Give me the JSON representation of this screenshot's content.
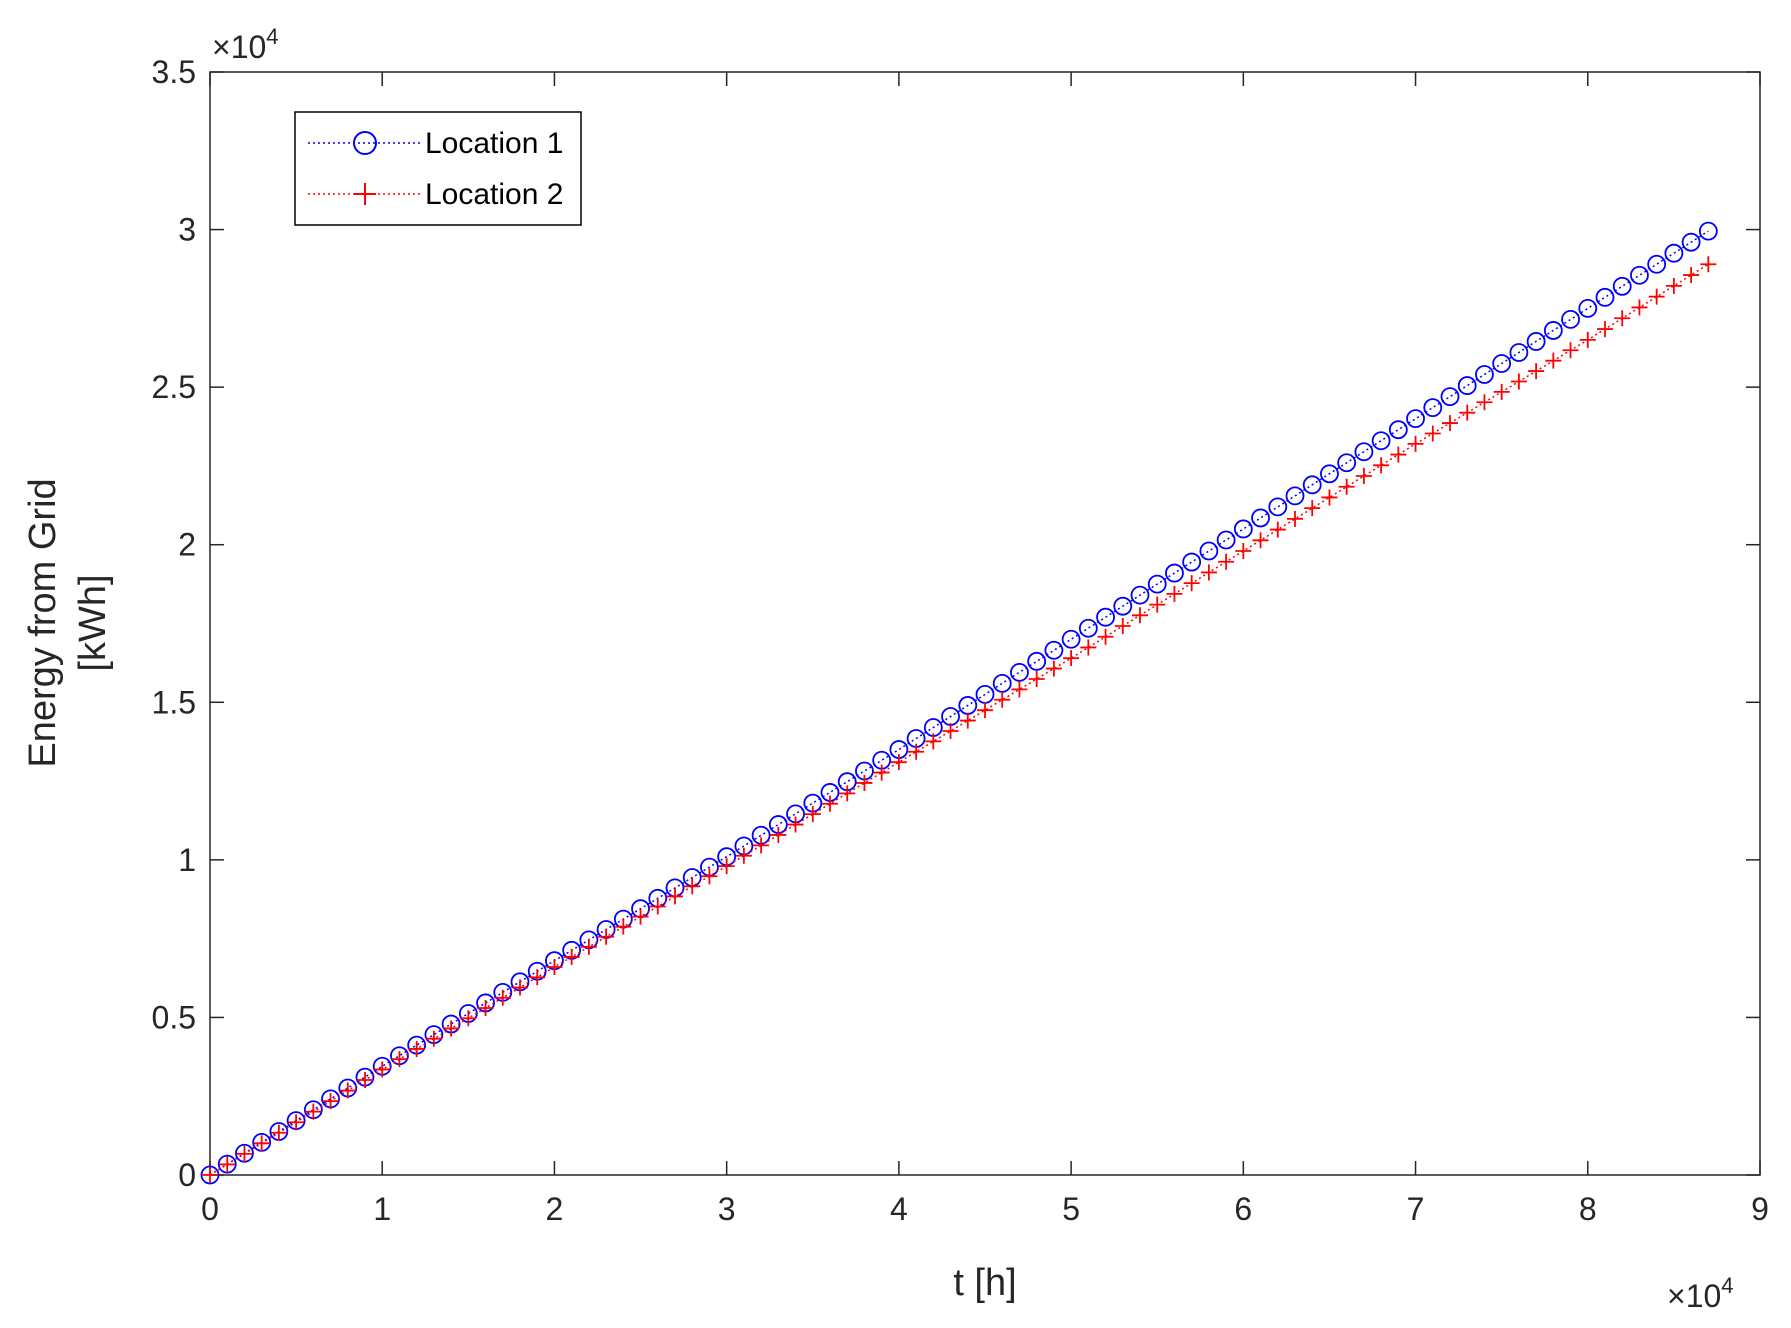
{
  "chart_data": {
    "type": "line",
    "title": "",
    "xlabel": "t [h]",
    "ylabel_lines": [
      "Energy from Grid",
      "[kWh]"
    ],
    "x_multiplier_label": "×10",
    "x_multiplier_exponent": "4",
    "y_multiplier_label": "×10",
    "y_multiplier_exponent": "4",
    "xlim": [
      0,
      9
    ],
    "ylim": [
      0,
      3.5
    ],
    "x_ticks": [
      0,
      1,
      2,
      3,
      4,
      5,
      6,
      7,
      8,
      9
    ],
    "x_tick_labels": [
      "0",
      "1",
      "2",
      "3",
      "4",
      "5",
      "6",
      "7",
      "8",
      "9"
    ],
    "y_ticks": [
      0,
      0.5,
      1,
      1.5,
      2,
      2.5,
      3,
      3.5
    ],
    "y_tick_labels": [
      "0",
      "0.5",
      "1",
      "1.5",
      "2",
      "2.5",
      "3",
      "3.5"
    ],
    "grid": false,
    "legend_position": "top-left",
    "series": [
      {
        "name": "Location 1",
        "color": "#0000ff",
        "marker": "circle",
        "line_style": "dotted",
        "x_start": 0,
        "x_step": 0.1,
        "count": 88,
        "y_anchor_x": [
          0,
          1,
          2,
          3,
          4,
          5,
          6,
          7,
          8,
          8.7
        ],
        "y_anchor_y": [
          0,
          0.345,
          0.68,
          1.01,
          1.35,
          1.7,
          2.05,
          2.4,
          2.75,
          2.995
        ]
      },
      {
        "name": "Location 2",
        "color": "#ff0000",
        "marker": "plus",
        "line_style": "dotted",
        "x_start": 0,
        "x_step": 0.1,
        "count": 88,
        "y_anchor_x": [
          0,
          1,
          2,
          3,
          4,
          5,
          6,
          7,
          8,
          8.7
        ],
        "y_anchor_y": [
          0,
          0.335,
          0.66,
          0.98,
          1.31,
          1.64,
          1.98,
          2.32,
          2.65,
          2.89
        ]
      }
    ]
  }
}
